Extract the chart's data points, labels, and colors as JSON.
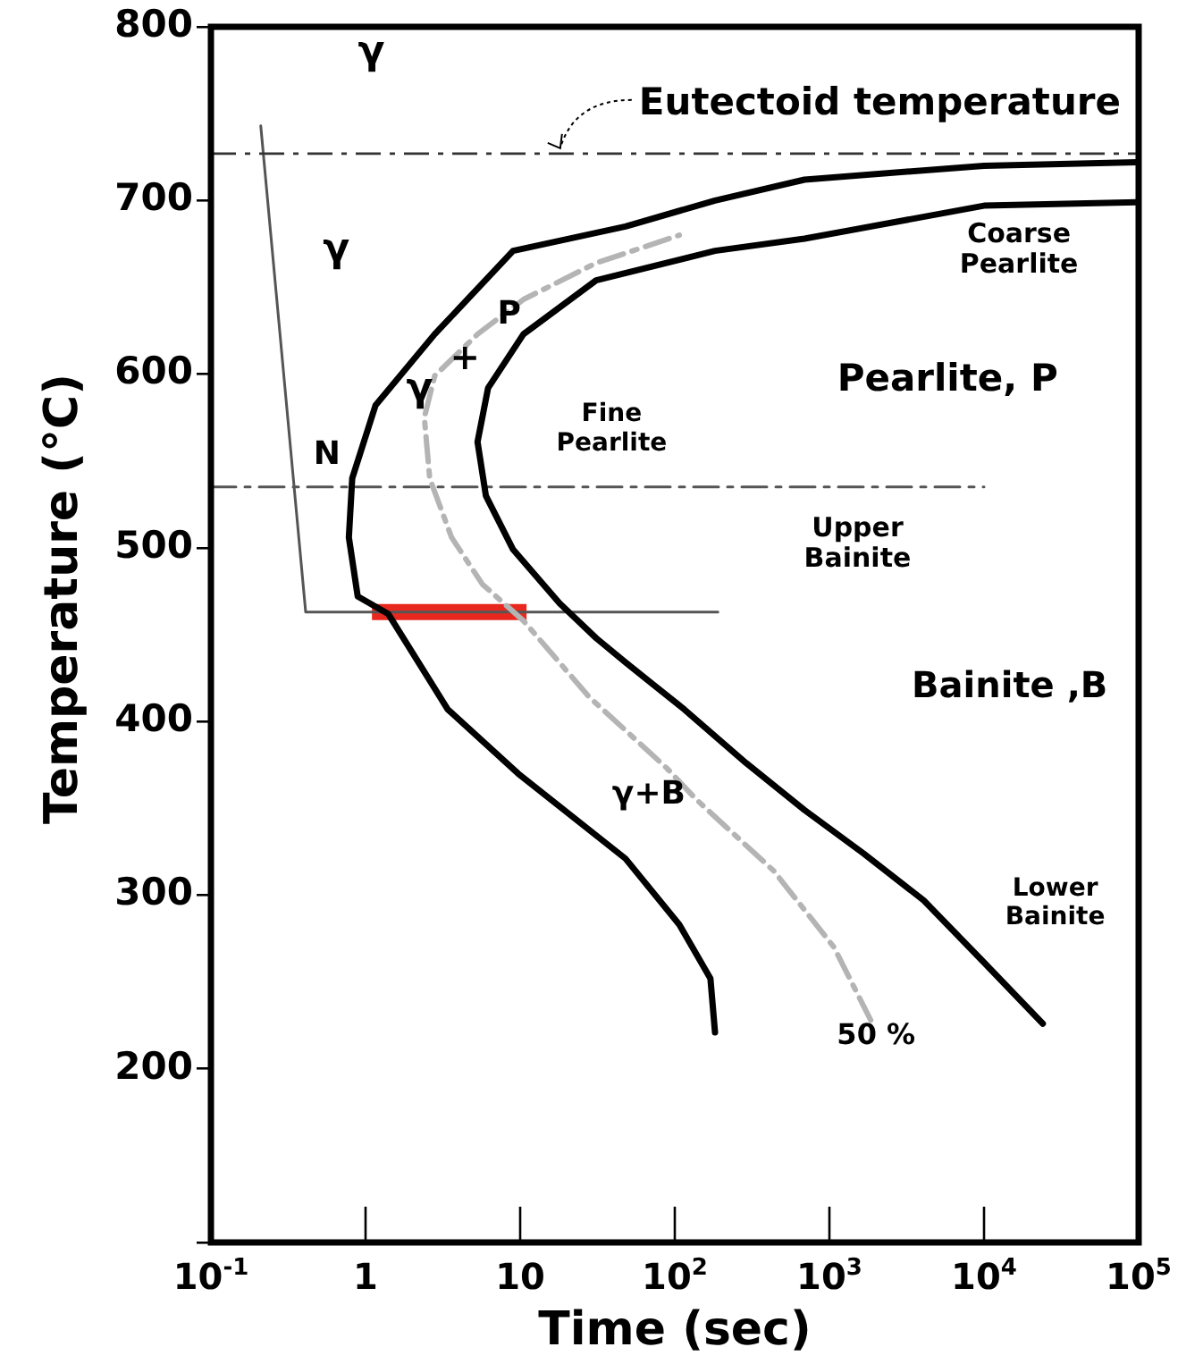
{
  "chart_data": {
    "type": "line",
    "xlabel": "Time (sec)",
    "ylabel": "Temperature (°C)",
    "log": "x",
    "marker": "none",
    "xlim": [
      0.1,
      100000
    ],
    "ylim": [
      100,
      800
    ],
    "xticks": [
      {
        "value": 0.1,
        "label": "10$^{-1}$"
      },
      1,
      10,
      {
        "value": 100,
        "label": "10$^{2}$"
      },
      {
        "value": 1000,
        "label": "10$^{3}$"
      },
      {
        "value": 10000,
        "label": "10$^{4}$"
      },
      {
        "value": 100000,
        "label": "10$^{5}$"
      }
    ],
    "yticks": [
      {
        "value": 100,
        "label": null
      },
      200,
      300,
      400,
      500,
      600,
      700,
      800
    ],
    "series": [
      {
        "color": "#000000",
        "line_style": "solid",
        "x": [
          182,
          170,
          107,
          48,
          9.7,
          3.4,
          1.4,
          0.89,
          0.78,
          0.82,
          1.16,
          2.8,
          9,
          48,
          182,
          690,
          10000,
          100000
        ],
        "values": [
          221,
          252,
          283,
          321,
          370,
          407,
          462,
          472,
          506,
          540,
          582,
          623,
          671,
          685,
          700,
          712,
          720,
          722
        ]
      },
      {
        "color": "#000000",
        "line_style": "solid",
        "x": [
          24000,
          9800,
          4070,
          1660,
          690,
          290,
          115,
          48,
          31,
          18,
          9,
          6,
          5.3,
          6.2,
          10.5,
          31,
          182,
          690,
          10000,
          100000
        ],
        "values": [
          226,
          262,
          297,
          324,
          349,
          376,
          407,
          434,
          448,
          468,
          499,
          530,
          561,
          592,
          623,
          654,
          671,
          678,
          697,
          699
        ]
      },
      {
        "color": "#b4b4b4",
        "line_style": "dashed",
        "x": [
          1850,
          1070,
          436,
          138,
          89,
          28,
          10.5,
          5.7,
          3.6,
          2.6,
          2.4,
          2.8,
          5.3,
          10.5,
          31,
          107
        ],
        "values": [
          228,
          270,
          314,
          355,
          373,
          414,
          458,
          479,
          506,
          540,
          575,
          599,
          623,
          643,
          664,
          680
        ]
      },
      {
        "color": "#555555",
        "line_style": "solid",
        "x": [
          0.21,
          0.41,
          190
        ],
        "values": [
          743,
          463,
          463
        ]
      },
      {
        "color": "#e8281e",
        "line_style": "solid",
        "x": [
          1.1,
          11
        ],
        "values": [
          463,
          463
        ]
      },
      {
        "color": "#555555",
        "line_style": "dashed",
        "x": [
          0.1,
          10000
        ],
        "values": [
          535,
          535
        ]
      }
    ],
    "ref_lines": [
      {
        "axis": "y",
        "value": 727,
        "label": "Eutectoid temperature",
        "color": "#333333",
        "line_style": "dashed"
      }
    ],
    "annotations": [
      "γ",
      "γ",
      "γ",
      {
        "text": "+",
        "x": 4.4,
        "y": 608
      },
      {
        "text": "P",
        "x": 8.5,
        "y": 634
      },
      "N",
      "Fine\nPearlite",
      "Coarse\nPearlite",
      "Pearlite, P",
      "Upper\nBainite",
      "Bainite ,B",
      "γ+B",
      "Lower\nBainite",
      "50 %"
    ]
  }
}
